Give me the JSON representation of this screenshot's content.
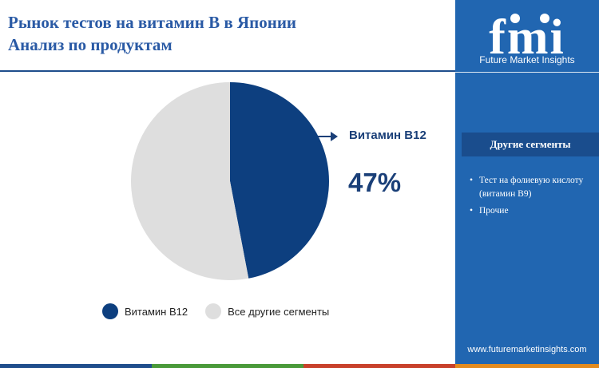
{
  "header": {
    "title_line1": "Рынок тестов на витамин B в Японии",
    "title_line2": "Анализ по продуктам"
  },
  "brand": {
    "logo_text": "fmi",
    "name": "Future Market Insights",
    "website": "www.futuremarketinsights.com"
  },
  "sidebar": {
    "segments_title": "Другие сегменты",
    "segments": [
      "Тест на фолиевую кислоту (витамин B9)",
      "Прочие"
    ]
  },
  "callout": {
    "label": "Витамин B12",
    "value": "47%"
  },
  "chart_data": {
    "type": "pie",
    "slices": [
      {
        "name": "Витамин B12",
        "value": 47,
        "color": "#0d3f7f"
      },
      {
        "name": "Все другие сегменты",
        "value": 53,
        "color": "#dedede"
      }
    ],
    "legend_position": "bottom"
  },
  "colors": {
    "accent": "#2166b1",
    "dark_blue": "#0d3f7f",
    "title": "#2a5aa5",
    "bottom_bar": [
      "#1f4e8c",
      "#4a9a3a",
      "#c8412b",
      "#e38b1f"
    ]
  }
}
